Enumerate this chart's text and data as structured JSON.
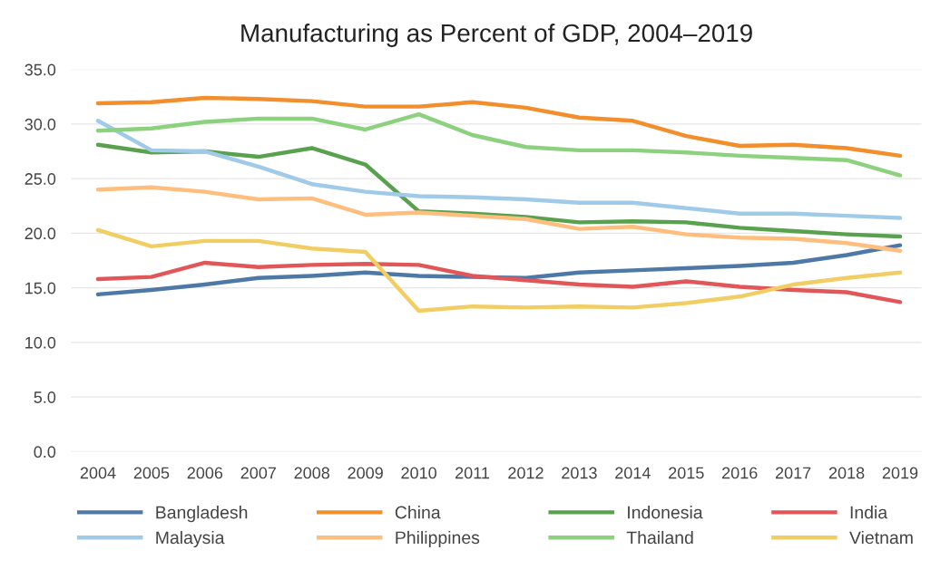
{
  "chart_data": {
    "type": "line",
    "title": "Manufacturing as Percent of GDP, 2004–2019",
    "categories": [
      "2004",
      "2005",
      "2006",
      "2007",
      "2008",
      "2009",
      "2010",
      "2011",
      "2012",
      "2013",
      "2014",
      "2015",
      "2016",
      "2017",
      "2018",
      "2019"
    ],
    "series": [
      {
        "name": "Bangladesh",
        "color": "#4e79a7",
        "values": [
          14.4,
          14.8,
          15.3,
          15.9,
          16.1,
          16.4,
          16.1,
          16.0,
          15.9,
          16.4,
          16.6,
          16.8,
          17.0,
          17.3,
          18.0,
          18.9
        ]
      },
      {
        "name": "China",
        "color": "#f28e2b",
        "values": [
          31.9,
          32.0,
          32.4,
          32.3,
          32.1,
          31.6,
          31.6,
          32.0,
          31.5,
          30.6,
          30.3,
          28.9,
          28.0,
          28.1,
          27.8,
          27.1
        ]
      },
      {
        "name": "Indonesia",
        "color": "#59a14f",
        "values": [
          28.1,
          27.4,
          27.5,
          27.0,
          27.8,
          26.3,
          22.0,
          21.8,
          21.5,
          21.0,
          21.1,
          21.0,
          20.5,
          20.2,
          19.9,
          19.7
        ]
      },
      {
        "name": "India",
        "color": "#e15759",
        "values": [
          15.8,
          16.0,
          17.3,
          16.9,
          17.1,
          17.2,
          17.1,
          16.1,
          15.7,
          15.3,
          15.1,
          15.6,
          15.1,
          14.8,
          14.6,
          13.7
        ]
      },
      {
        "name": "Malaysia",
        "color": "#a0cbe8",
        "values": [
          30.3,
          27.6,
          27.5,
          26.1,
          24.5,
          23.8,
          23.4,
          23.3,
          23.1,
          22.8,
          22.8,
          22.3,
          21.8,
          21.8,
          21.6,
          21.4
        ]
      },
      {
        "name": "Philippines",
        "color": "#ffbe7d",
        "values": [
          24.0,
          24.2,
          23.8,
          23.1,
          23.2,
          21.7,
          21.9,
          21.6,
          21.3,
          20.4,
          20.6,
          19.9,
          19.6,
          19.5,
          19.1,
          18.4
        ]
      },
      {
        "name": "Thailand",
        "color": "#8cd17d",
        "values": [
          29.4,
          29.6,
          30.2,
          30.5,
          30.5,
          29.5,
          30.9,
          29.0,
          27.9,
          27.6,
          27.6,
          27.4,
          27.1,
          26.9,
          26.7,
          25.3
        ]
      },
      {
        "name": "Vietnam",
        "color": "#f1ce63",
        "values": [
          20.3,
          18.8,
          19.3,
          19.3,
          18.6,
          18.3,
          12.9,
          13.3,
          13.2,
          13.3,
          13.2,
          13.6,
          14.2,
          15.3,
          15.9,
          16.4
        ]
      }
    ],
    "ylim": [
      0,
      35
    ],
    "yticks": [
      {
        "value": 0,
        "label": "0.0"
      },
      {
        "value": 5,
        "label": "5.0"
      },
      {
        "value": 10,
        "label": "10.0"
      },
      {
        "value": 15,
        "label": "15.0"
      },
      {
        "value": 20,
        "label": "20.0"
      },
      {
        "value": 25,
        "label": "25.0"
      },
      {
        "value": 30,
        "label": "30.0"
      },
      {
        "value": 35,
        "label": "35.0"
      }
    ],
    "grid": "y",
    "legend": "bottom",
    "marker": "none",
    "line_style": "solid"
  }
}
